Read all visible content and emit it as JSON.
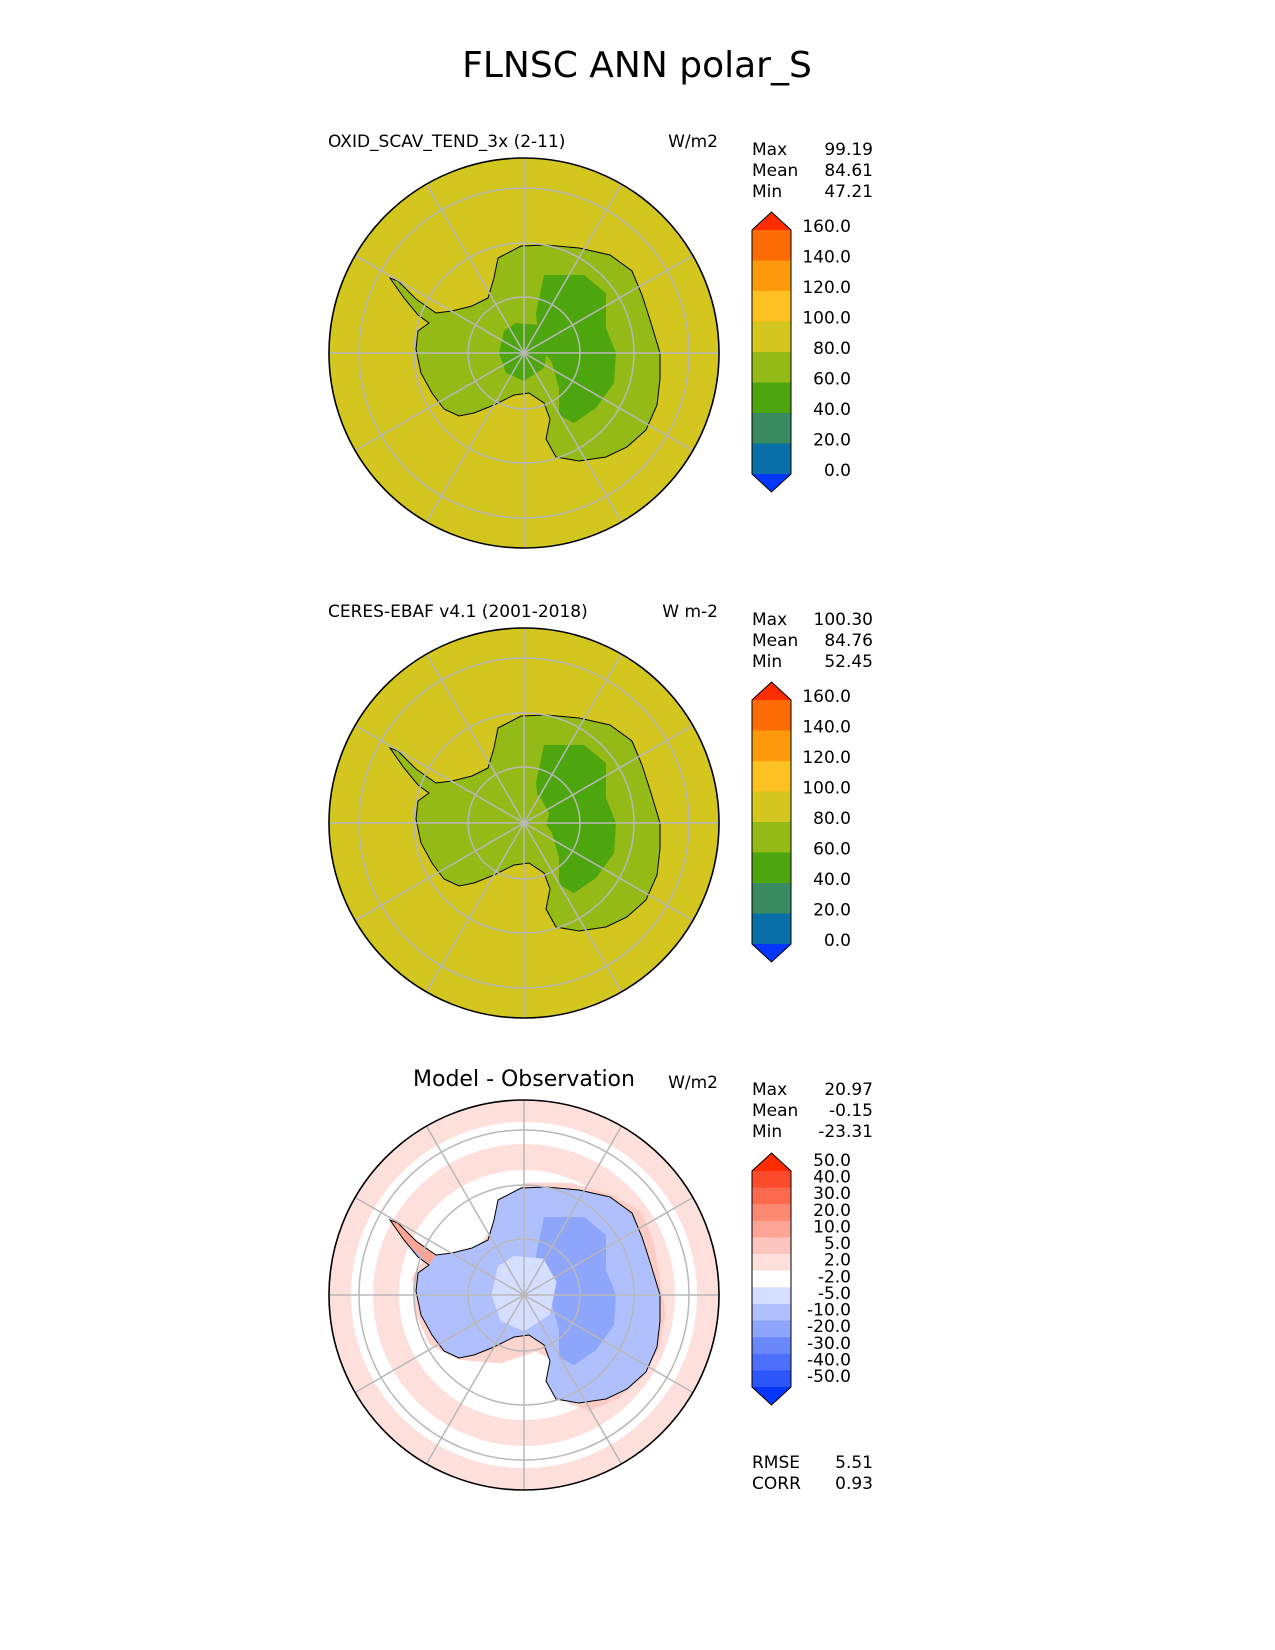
{
  "figure": {
    "title": "FLNSC ANN polar_S"
  },
  "chart_data": [
    {
      "type": "heatmap",
      "panel": "test",
      "title": "OXID_SCAV_TEND_3x (2-11)",
      "units": "W/m2",
      "stats": [
        {
          "label": "Max",
          "value": "99.19"
        },
        {
          "label": "Mean",
          "value": "84.61"
        },
        {
          "label": "Min",
          "value": "47.21"
        }
      ],
      "field": {
        "ocean": 84.6,
        "coast": 72,
        "interior": 55,
        "east_interior": 52
      },
      "colorbar": {
        "ticks": [
          "0.0",
          "20.0",
          "40.0",
          "60.0",
          "80.0",
          "100.0",
          "120.0",
          "140.0",
          "160.0"
        ],
        "colors": [
          "#0437fb",
          "#0870a6",
          "#398a60",
          "#4ea60f",
          "#94ba17",
          "#d2c61f",
          "#fdc123",
          "#fd9a0c",
          "#fd6c05",
          "#ff2c00"
        ]
      }
    },
    {
      "type": "heatmap",
      "panel": "reference",
      "title": "CERES-EBAF v4.1 (2001-2018)",
      "units": "W m-2",
      "stats": [
        {
          "label": "Max",
          "value": "100.30"
        },
        {
          "label": "Mean",
          "value": "84.76"
        },
        {
          "label": "Min",
          "value": "52.45"
        }
      ],
      "field": {
        "ocean": 84.8,
        "coast": 72,
        "interior": 70,
        "east_interior": 55
      },
      "colorbar": {
        "ticks": [
          "0.0",
          "20.0",
          "40.0",
          "60.0",
          "80.0",
          "100.0",
          "120.0",
          "140.0",
          "160.0"
        ],
        "colors": [
          "#0437fb",
          "#0870a6",
          "#398a60",
          "#4ea60f",
          "#94ba17",
          "#d2c61f",
          "#fdc123",
          "#fd9a0c",
          "#fd6c05",
          "#ff2c00"
        ]
      }
    },
    {
      "type": "heatmap",
      "panel": "difference",
      "title": "Model - Observation",
      "units": "W/m2",
      "stats": [
        {
          "label": "Max",
          "value": "20.97"
        },
        {
          "label": "Mean",
          "value": "-0.15"
        },
        {
          "label": "Min",
          "value": "-23.31"
        }
      ],
      "metrics": [
        {
          "label": "RMSE",
          "value": "5.51"
        },
        {
          "label": "CORR",
          "value": "0.93"
        }
      ],
      "colorbar": {
        "ticks": [
          "-50.0",
          "-40.0",
          "-30.0",
          "-20.0",
          "-10.0",
          "-5.0",
          "-2.0",
          "2.0",
          "5.0",
          "10.0",
          "20.0",
          "30.0",
          "40.0",
          "50.0"
        ],
        "colors": [
          "#0437fb",
          "#2d55fb",
          "#4d6ffb",
          "#6b88fb",
          "#8ea5fc",
          "#afc0fd",
          "#d5defe",
          "#ffffff",
          "#fde0dc",
          "#fcc5bd",
          "#fca596",
          "#fc8a73",
          "#fb6a4f",
          "#fb4a2c",
          "#ff2c00"
        ]
      }
    }
  ]
}
